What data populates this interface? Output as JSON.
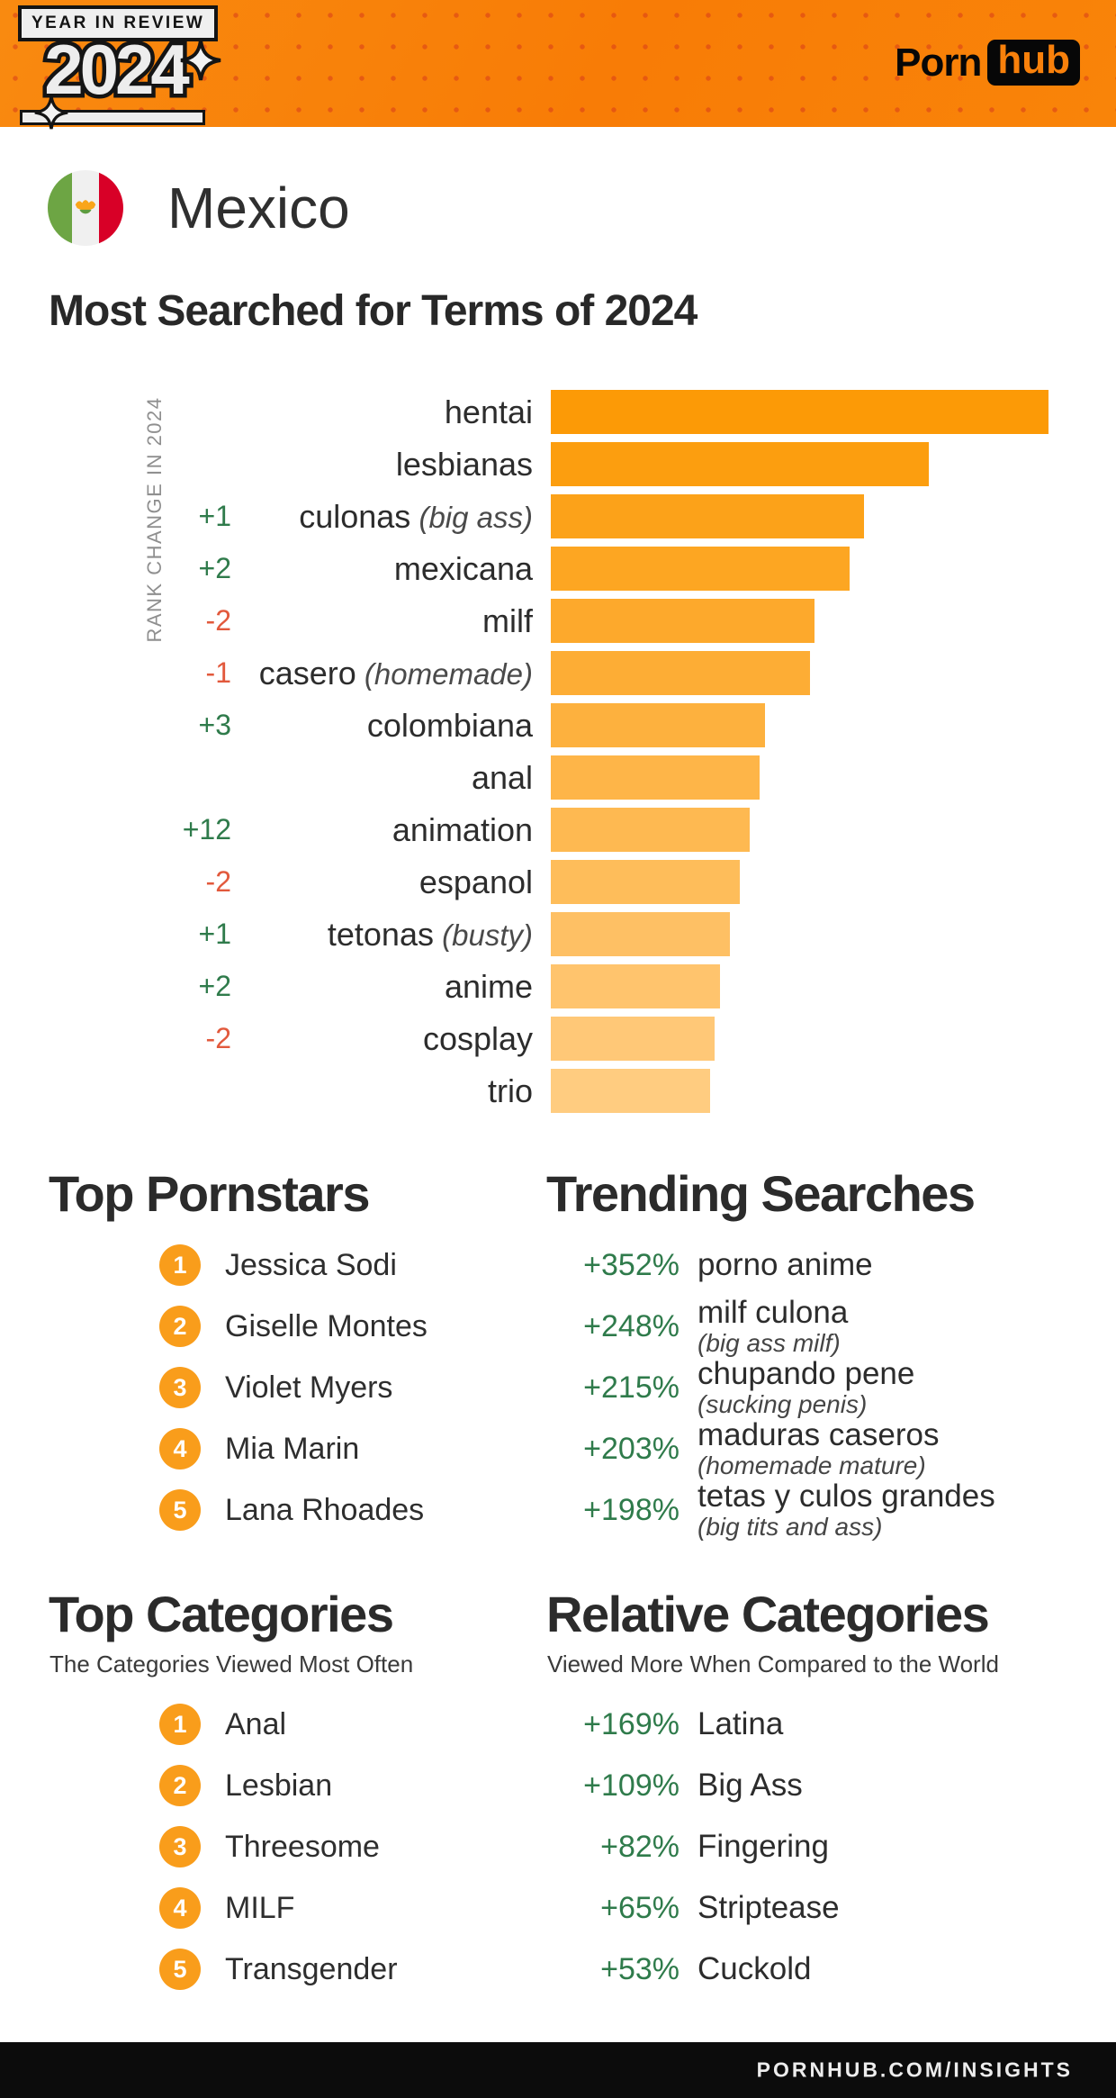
{
  "header": {
    "badge_label": "YEAR IN REVIEW",
    "year": "2024",
    "brand_porn": "Porn",
    "brand_hub": "hub"
  },
  "country": "Mexico",
  "page_title": "Most Searched for Terms of 2024",
  "chart_data": {
    "type": "bar",
    "orientation": "horizontal",
    "axis_label": "RANK CHANGE IN 2024",
    "xlim": [
      0,
      100
    ],
    "bar_color_start": "#FC9A06",
    "bar_color_end": "#FFCC80",
    "rank_up_color": "#2F7B4B",
    "rank_down_color": "#E2593C",
    "rows": [
      {
        "term": "hentai",
        "translation": "",
        "rank_change": "",
        "value": 100
      },
      {
        "term": "lesbianas",
        "translation": "",
        "rank_change": "",
        "value": 76
      },
      {
        "term": "culonas",
        "translation": "(big ass)",
        "rank_change": "+1",
        "value": 63
      },
      {
        "term": "mexicana",
        "translation": "",
        "rank_change": "+2",
        "value": 60
      },
      {
        "term": "milf",
        "translation": "",
        "rank_change": "-2",
        "value": 53
      },
      {
        "term": "casero",
        "translation": "(homemade)",
        "rank_change": "-1",
        "value": 52
      },
      {
        "term": "colombiana",
        "translation": "",
        "rank_change": "+3",
        "value": 43
      },
      {
        "term": "anal",
        "translation": "",
        "rank_change": "",
        "value": 42
      },
      {
        "term": "animation",
        "translation": "",
        "rank_change": "+12",
        "value": 40
      },
      {
        "term": "espanol",
        "translation": "",
        "rank_change": "-2",
        "value": 38
      },
      {
        "term": "tetonas",
        "translation": "(busty)",
        "rank_change": "+1",
        "value": 36
      },
      {
        "term": "anime",
        "translation": "",
        "rank_change": "+2",
        "value": 34
      },
      {
        "term": "cosplay",
        "translation": "",
        "rank_change": "-2",
        "value": 33
      },
      {
        "term": "trio",
        "translation": "",
        "rank_change": "",
        "value": 32
      }
    ]
  },
  "top_pornstars": {
    "title": "Top Pornstars",
    "items": [
      "Jessica Sodi",
      "Giselle Montes",
      "Violet Myers",
      "Mia Marin",
      "Lana Rhoades"
    ]
  },
  "trending_searches": {
    "title": "Trending Searches",
    "items": [
      {
        "pct": "+352%",
        "term": "porno anime",
        "translation": ""
      },
      {
        "pct": "+248%",
        "term": "milf culona",
        "translation": "(big ass milf)"
      },
      {
        "pct": "+215%",
        "term": "chupando pene",
        "translation": "(sucking penis)"
      },
      {
        "pct": "+203%",
        "term": "maduras caseros",
        "translation": "(homemade mature)"
      },
      {
        "pct": "+198%",
        "term": "tetas y culos grandes",
        "translation": "(big tits and ass)"
      }
    ]
  },
  "top_categories": {
    "title": "Top Categories",
    "subtitle": "The Categories Viewed Most Often",
    "items": [
      "Anal",
      "Lesbian",
      "Threesome",
      "MILF",
      "Transgender"
    ]
  },
  "relative_categories": {
    "title": "Relative Categories",
    "subtitle": "Viewed More When Compared to the World",
    "items": [
      {
        "pct": "+169%",
        "term": "Latina"
      },
      {
        "pct": "+109%",
        "term": "Big Ass"
      },
      {
        "pct": "+82%",
        "term": "Fingering"
      },
      {
        "pct": "+65%",
        "term": "Striptease"
      },
      {
        "pct": "+53%",
        "term": "Cuckold"
      }
    ]
  },
  "footer": {
    "site": "PORNHUB.COM/INSIGHTS"
  },
  "colors": {
    "header_orange": "#F8800B",
    "header_dot": "#D83A19",
    "accent_circle": "#F99D1B",
    "green": "#2F7B4B",
    "red": "#E2593C",
    "title_dark": "#2B2B2B",
    "footer_bg": "#0C0C0C"
  }
}
